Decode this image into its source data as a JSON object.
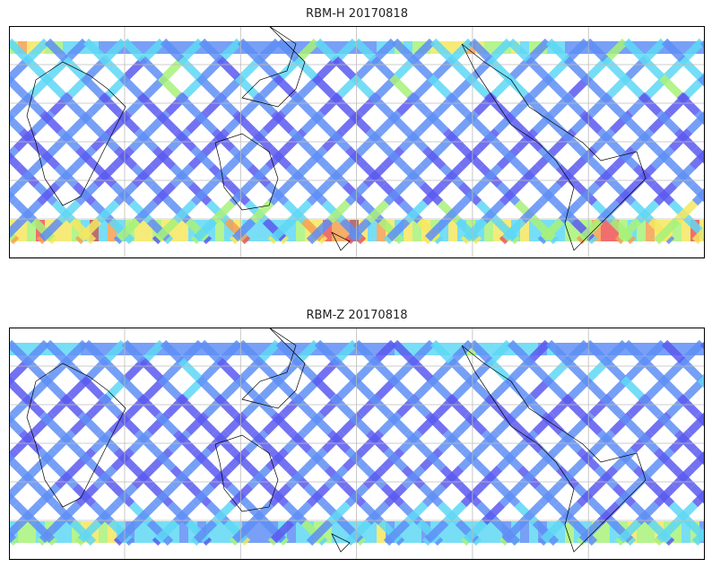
{
  "panels": [
    {
      "title": "RBM-H 20170818",
      "variable": "RBM-H",
      "date": "20170818",
      "south_intensity": 0.85,
      "north_intensity": 0.5
    },
    {
      "title": "RBM-Z 20170818",
      "variable": "RBM-Z",
      "date": "20170818",
      "south_intensity": 0.45,
      "north_intensity": 0.25
    }
  ],
  "colormap": [
    "#5a5af0",
    "#5f8ff5",
    "#5fd8f5",
    "#a8f27a",
    "#f5e860",
    "#f5a050",
    "#ee5555",
    "#b05555"
  ]
}
